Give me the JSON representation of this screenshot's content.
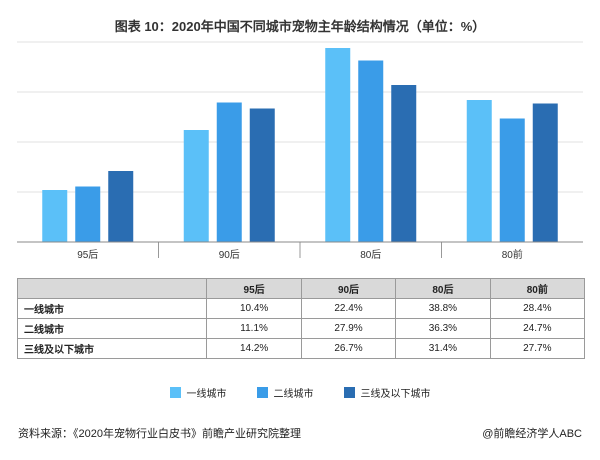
{
  "title": "图表 10：2020年中国不同城市宠物主年龄结构情况（单位：%）",
  "colors": {
    "s1": "#5bc0f8",
    "s2": "#3a9ce8",
    "s3": "#2a6db2"
  },
  "chart_data": {
    "type": "bar",
    "title": "图表 10：2020年中国不同城市宠物主年龄结构情况（单位：%）",
    "categories": [
      "95后",
      "90后",
      "80后",
      "80前"
    ],
    "series": [
      {
        "name": "一线城市",
        "values": [
          10.4,
          22.4,
          38.8,
          28.4
        ]
      },
      {
        "name": "二线城市",
        "values": [
          11.1,
          27.9,
          36.3,
          24.7
        ]
      },
      {
        "name": "三线及以下城市",
        "values": [
          14.2,
          26.7,
          31.4,
          27.7
        ]
      }
    ],
    "ylim": [
      0,
      40
    ],
    "grid": true,
    "legend": "bottom"
  },
  "table": {
    "headers": [
      "",
      "95后",
      "90后",
      "80后",
      "80前"
    ],
    "rows": [
      {
        "label": "一线城市",
        "cells": [
          "10.4%",
          "22.4%",
          "38.8%",
          "28.4%"
        ]
      },
      {
        "label": "二线城市",
        "cells": [
          "11.1%",
          "27.9%",
          "36.3%",
          "24.7%"
        ]
      },
      {
        "label": "三线及以下城市",
        "cells": [
          "14.2%",
          "26.7%",
          "31.4%",
          "27.7%"
        ]
      }
    ]
  },
  "source": "资料来源：《2020年宠物行业白皮书》前瞻产业研究院整理",
  "credit": "@前瞻经济学人ABC"
}
